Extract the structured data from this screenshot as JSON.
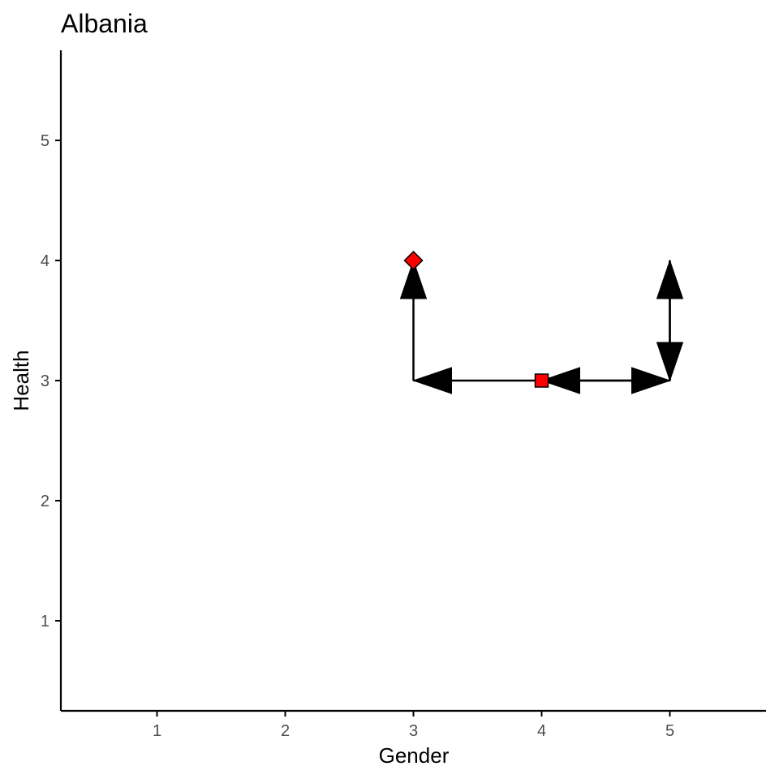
{
  "chart_data": {
    "type": "line",
    "title": "Albania",
    "xlabel": "Gender",
    "ylabel": "Health",
    "xlim": [
      0.25,
      5.75
    ],
    "ylim": [
      0.25,
      5.75
    ],
    "x_ticks": [
      1,
      2,
      3,
      4,
      5
    ],
    "y_ticks": [
      1,
      2,
      3,
      4,
      5
    ],
    "grid": false,
    "path": [
      {
        "x": 4,
        "y": 3
      },
      {
        "x": 5,
        "y": 3
      },
      {
        "x": 5,
        "y": 4
      },
      {
        "x": 5,
        "y": 3
      },
      {
        "x": 4,
        "y": 3
      },
      {
        "x": 3,
        "y": 3
      },
      {
        "x": 3,
        "y": 4
      }
    ],
    "start_point": {
      "x": 4,
      "y": 3,
      "shape": "square",
      "color": "#ff0000"
    },
    "end_point": {
      "x": 3,
      "y": 4,
      "shape": "diamond",
      "color": "#ff0000"
    },
    "line_color": "#000000"
  }
}
